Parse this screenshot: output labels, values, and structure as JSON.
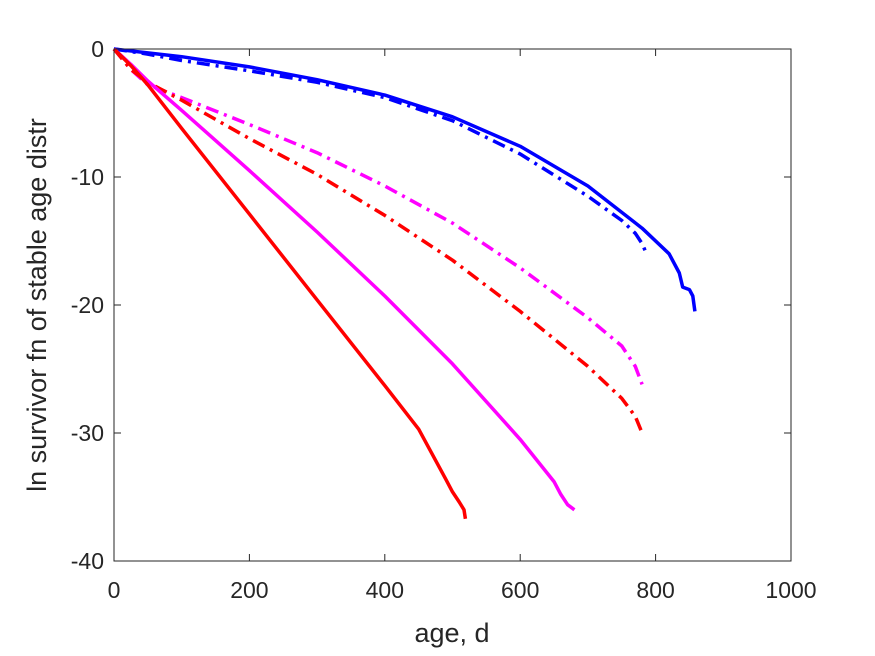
{
  "chart_data": {
    "type": "line",
    "title": "",
    "xlabel": "age, d",
    "ylabel": "ln survivor fn of stable age distr",
    "xlim": [
      0,
      1000
    ],
    "ylim": [
      -40,
      0
    ],
    "xticks": [
      0,
      200,
      400,
      600,
      800,
      1000
    ],
    "yticks": [
      0,
      -10,
      -20,
      -30,
      -40
    ],
    "xtick_labels": [
      "0",
      "200",
      "400",
      "600",
      "800",
      "1000"
    ],
    "ytick_labels": [
      "0",
      "-10",
      "-20",
      "-30",
      "-40"
    ],
    "grid": false,
    "legend": "none",
    "series": [
      {
        "color": "#0000ff",
        "style": "solid",
        "x": [
          0,
          100,
          200,
          300,
          400,
          500,
          600,
          700,
          780,
          820,
          835,
          840,
          850,
          855,
          858
        ],
        "y": [
          0,
          -0.6,
          -1.4,
          -2.4,
          -3.6,
          -5.3,
          -7.6,
          -10.7,
          -14.0,
          -16.0,
          -17.5,
          -18.6,
          -18.8,
          -19.3,
          -20.5
        ]
      },
      {
        "color": "#0000ff",
        "style": "dashdot",
        "x": [
          0,
          50,
          100,
          200,
          300,
          400,
          500,
          600,
          700,
          750,
          770,
          780,
          785
        ],
        "y": [
          0,
          -0.4,
          -0.9,
          -1.7,
          -2.6,
          -3.8,
          -5.6,
          -8.2,
          -11.5,
          -13.4,
          -14.4,
          -15.2,
          -15.8
        ]
      },
      {
        "color": "#ff00ff",
        "style": "dashdot",
        "x": [
          0,
          25,
          50,
          100,
          200,
          300,
          400,
          500,
          600,
          700,
          750,
          770,
          780
        ],
        "y": [
          0,
          -1.6,
          -2.8,
          -3.8,
          -5.9,
          -8.1,
          -10.7,
          -13.6,
          -17.1,
          -21.0,
          -23.2,
          -24.8,
          -26.2
        ]
      },
      {
        "color": "#ff0000",
        "style": "dashdot",
        "x": [
          0,
          25,
          50,
          100,
          200,
          300,
          400,
          500,
          600,
          700,
          750,
          770,
          780
        ],
        "y": [
          0,
          -1.6,
          -2.6,
          -4.0,
          -7.0,
          -9.8,
          -13.0,
          -16.5,
          -20.5,
          -24.8,
          -27.3,
          -28.7,
          -30.0
        ]
      },
      {
        "color": "#ff00ff",
        "style": "solid",
        "x": [
          0,
          25,
          50,
          100,
          200,
          300,
          400,
          500,
          600,
          650,
          660,
          670,
          680
        ],
        "y": [
          0,
          -1.2,
          -2.5,
          -4.8,
          -9.5,
          -14.3,
          -19.3,
          -24.6,
          -30.5,
          -33.8,
          -34.8,
          -35.6,
          -36.0
        ]
      },
      {
        "color": "#ff0000",
        "style": "solid",
        "x": [
          0,
          25,
          50,
          100,
          200,
          300,
          400,
          450,
          490,
          500,
          510,
          517,
          519
        ],
        "y": [
          0,
          -1.3,
          -2.8,
          -6.2,
          -12.9,
          -19.6,
          -26.3,
          -29.7,
          -33.6,
          -34.6,
          -35.4,
          -36.0,
          -36.7
        ]
      }
    ]
  }
}
